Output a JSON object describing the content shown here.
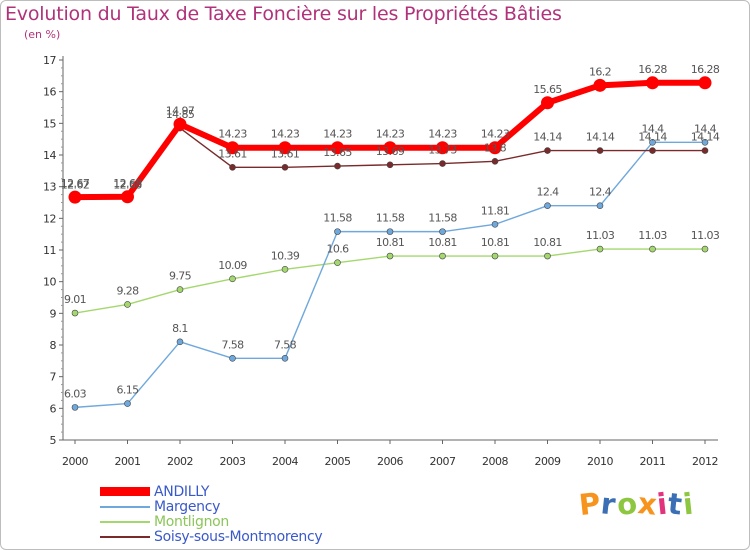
{
  "chart_data": {
    "type": "line",
    "title": "Evolution du Taux de Taxe Foncière sur les Propriétés Bâties",
    "subtitle": "(en %)",
    "xlabel": "",
    "ylabel": "(en %)",
    "ylim": [
      5,
      17
    ],
    "yticks": [
      "5",
      "6",
      "7",
      "8",
      "9",
      "10",
      "11",
      "12",
      "13",
      "14",
      "15",
      "16",
      "17"
    ],
    "categories": [
      "2000",
      "2001",
      "2002",
      "2003",
      "2004",
      "2005",
      "2006",
      "2007",
      "2008",
      "2009",
      "2010",
      "2011",
      "2012"
    ],
    "series": [
      {
        "name": "ANDILLY",
        "color": "#ff0000",
        "values": [
          12.67,
          12.68,
          14.97,
          14.23,
          14.23,
          14.23,
          14.23,
          14.23,
          14.23,
          15.65,
          16.2,
          16.28,
          16.28
        ],
        "labels": [
          "12.67",
          "12.68",
          "14.97",
          "14.23",
          "14.23",
          "14.23",
          "14.23",
          "14.23",
          "14.23",
          "15.65",
          "16.2",
          "16.28",
          "16.28"
        ]
      },
      {
        "name": "Margency",
        "color": "#6fa8dc",
        "values": [
          6.03,
          6.15,
          8.1,
          7.58,
          7.58,
          11.58,
          11.58,
          11.58,
          11.81,
          12.4,
          12.4,
          14.4,
          14.4
        ],
        "labels": [
          "6.03",
          "6.15",
          "8.1",
          "7.58",
          "7.58",
          "11.58",
          "11.58",
          "11.58",
          "11.81",
          "12.4",
          "12.4",
          "14.4",
          "14.4"
        ]
      },
      {
        "name": "Montlignon",
        "color": "#a4d86e",
        "values": [
          9.01,
          9.28,
          9.75,
          10.09,
          10.39,
          10.6,
          10.81,
          10.81,
          10.81,
          10.81,
          11.03,
          11.03,
          11.03
        ],
        "labels": [
          "9.01",
          "9.28",
          "9.75",
          "10.09",
          "10.39",
          "10.6",
          "10.81",
          "10.81",
          "10.81",
          "10.81",
          "11.03",
          "11.03",
          "11.03"
        ]
      },
      {
        "name": "Soisy-sous-Montmorency",
        "color": "#7a2a2a",
        "values": [
          12.62,
          12.63,
          14.85,
          13.61,
          13.61,
          13.65,
          13.69,
          13.73,
          13.8,
          14.14,
          14.14,
          14.14,
          14.14
        ],
        "labels": [
          "12.62",
          "12.63",
          "14.85",
          "13.61",
          "13.61",
          "13.65",
          "13.69",
          "13.73",
          "13.8",
          "14.14",
          "14.14",
          "14.14",
          "14.14"
        ]
      }
    ],
    "legend_position": "bottom-left",
    "grid": false
  },
  "logo": {
    "text": "Proxiti",
    "colors": [
      "#f7941d",
      "#3a6fb5",
      "#8dc63f",
      "#f7941d",
      "#e2337d",
      "#3a6fb5",
      "#8dc63f"
    ]
  },
  "colors": {
    "title": "#b0337a",
    "axis": "#666666"
  }
}
